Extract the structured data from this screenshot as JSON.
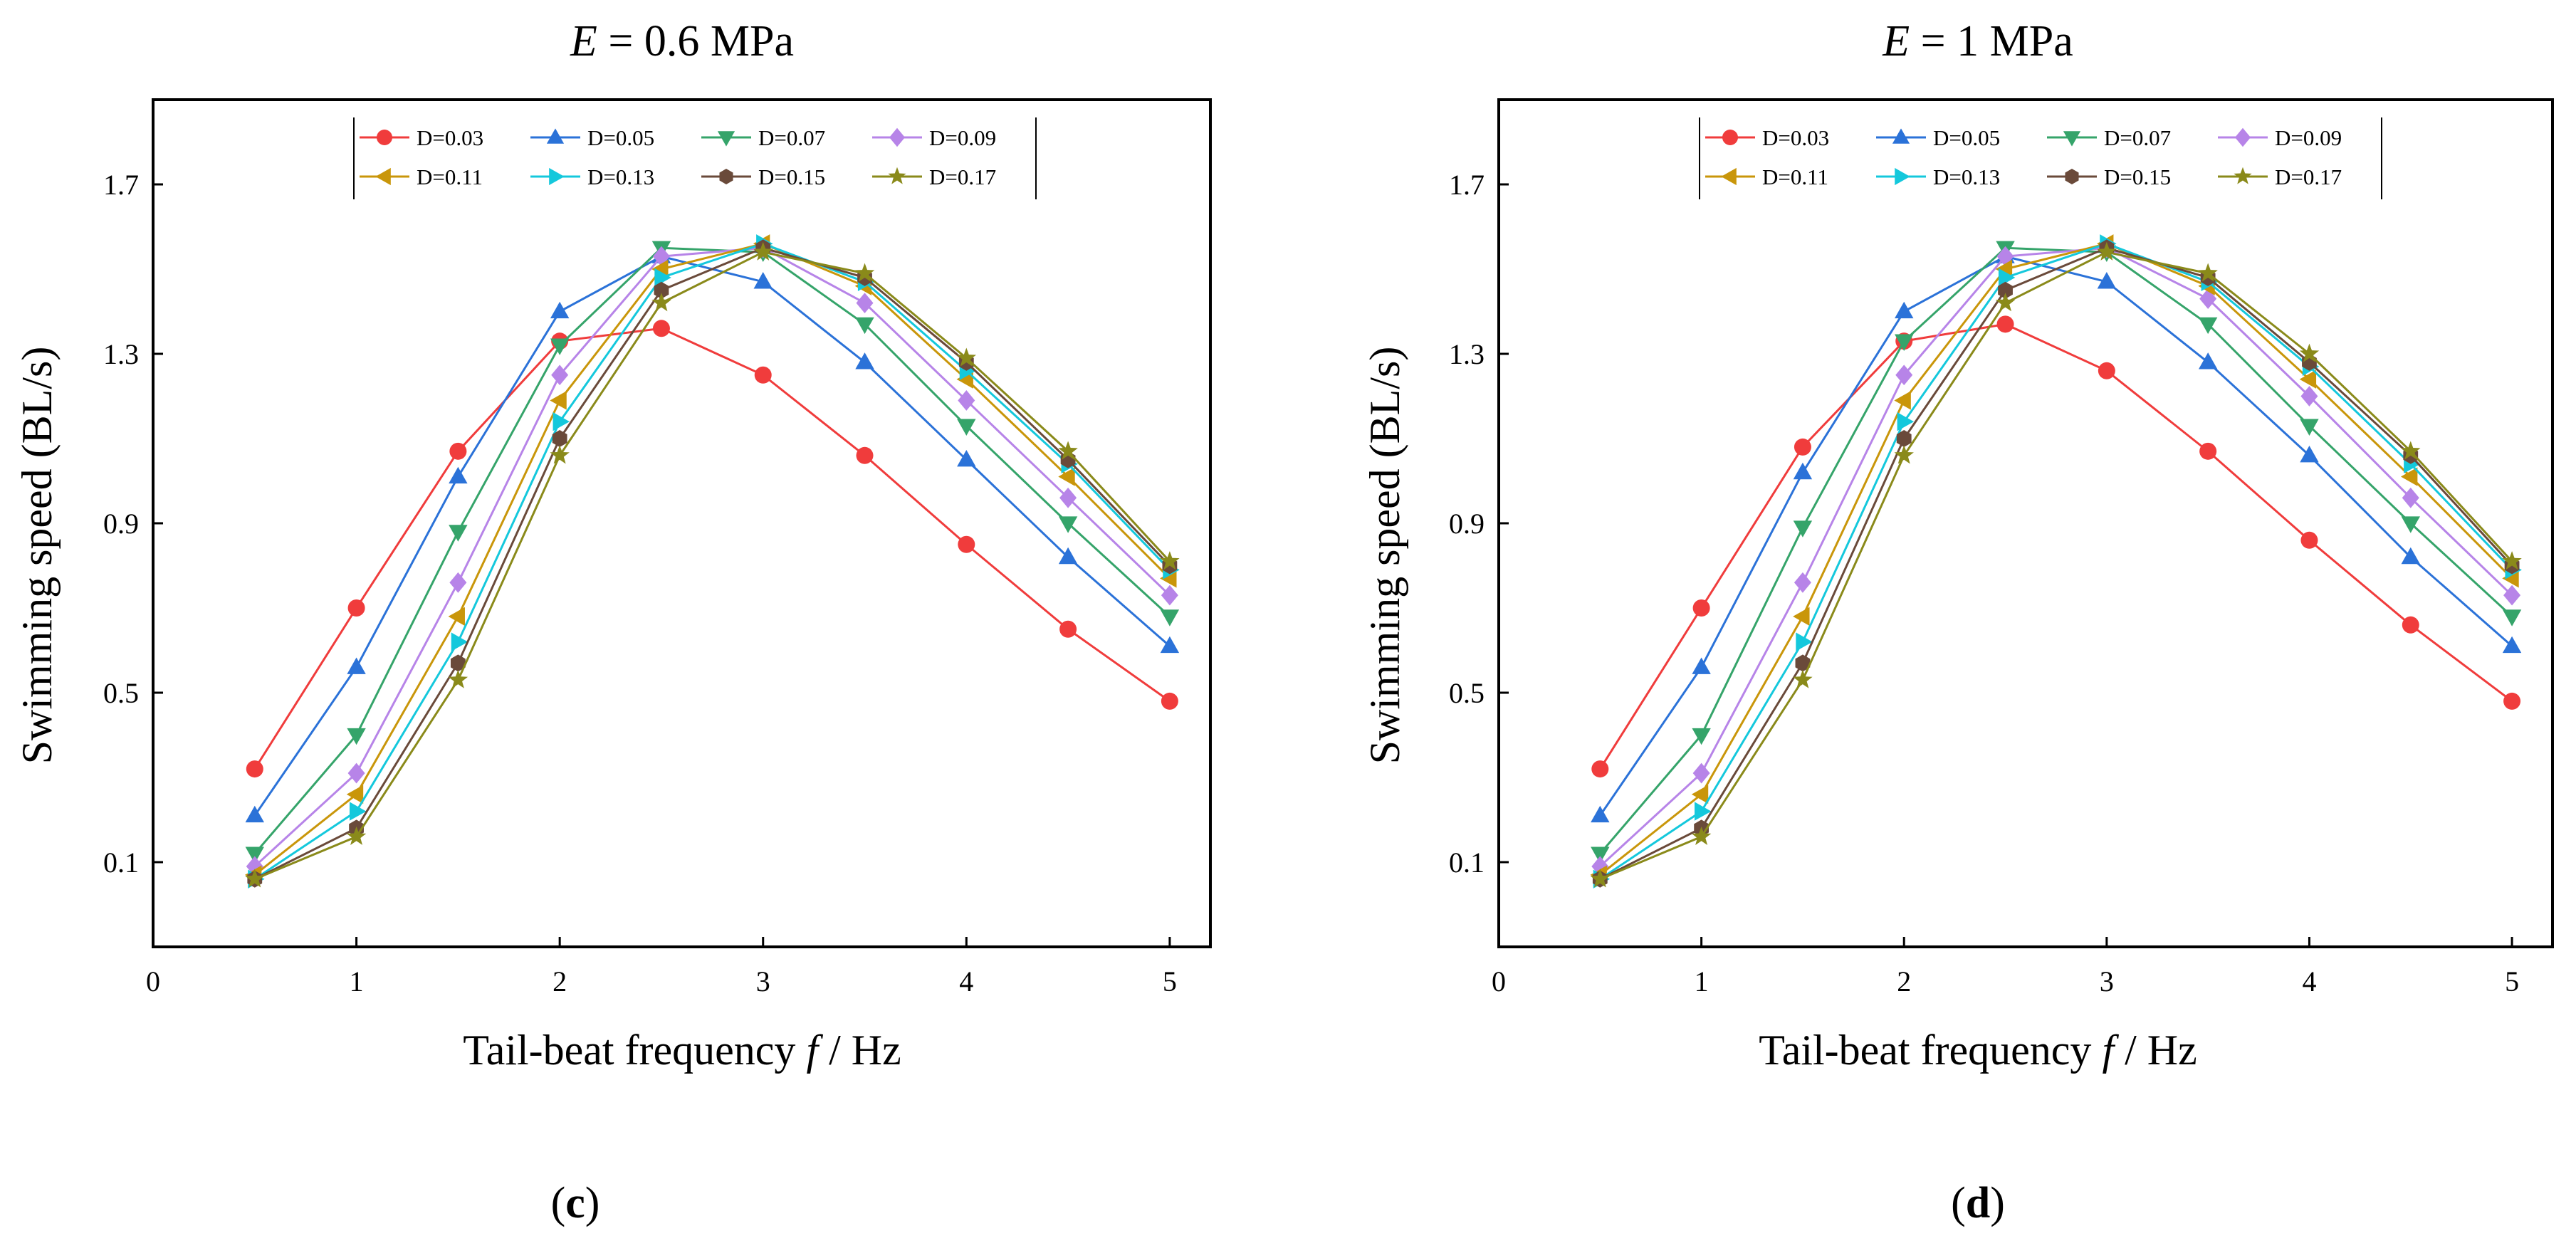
{
  "figure": {
    "caption_c": {
      "open": "(",
      "letter": "c",
      "close": ")"
    },
    "caption_d": {
      "open": "(",
      "letter": "d",
      "close": ")"
    }
  },
  "chart_data": [
    {
      "type": "line",
      "title_var": "E",
      "title_rest": " = 0.6 MPa",
      "xlabel_main": "Tail-beat frequency ",
      "xlabel_var": "f",
      "xlabel_unit": " / Hz",
      "ylabel": "Swimming speed (BL/s)",
      "xlim": [
        0,
        5.2
      ],
      "ylim": [
        -0.1,
        1.9
      ],
      "xticks": [
        "0",
        "1",
        "2",
        "3",
        "4",
        "5"
      ],
      "yticks": [
        "0.1",
        "0.5",
        "0.9",
        "1.3",
        "1.7"
      ],
      "x": [
        0.5,
        1.0,
        1.5,
        2.0,
        2.5,
        3.0,
        3.5,
        4.0,
        4.5,
        5.0
      ],
      "series": [
        {
          "name": "D=0.03",
          "color": "#f03c3c",
          "marker": "circle",
          "values": [
            0.32,
            0.7,
            1.07,
            1.33,
            1.36,
            1.25,
            1.06,
            0.85,
            0.65,
            0.48
          ]
        },
        {
          "name": "D=0.05",
          "color": "#2b72d8",
          "marker": "triangle-up",
          "values": [
            0.21,
            0.56,
            1.01,
            1.4,
            1.53,
            1.47,
            1.28,
            1.05,
            0.82,
            0.61
          ]
        },
        {
          "name": "D=0.07",
          "color": "#35a46a",
          "marker": "triangle-down",
          "values": [
            0.12,
            0.4,
            0.88,
            1.32,
            1.55,
            1.54,
            1.37,
            1.13,
            0.9,
            0.68
          ]
        },
        {
          "name": "D=0.09",
          "color": "#b784e8",
          "marker": "diamond",
          "values": [
            0.09,
            0.31,
            0.76,
            1.25,
            1.53,
            1.55,
            1.42,
            1.19,
            0.96,
            0.73
          ]
        },
        {
          "name": "D=0.11",
          "color": "#c9960a",
          "marker": "triangle-left",
          "values": [
            0.07,
            0.26,
            0.68,
            1.19,
            1.5,
            1.56,
            1.46,
            1.24,
            1.01,
            0.77
          ]
        },
        {
          "name": "D=0.13",
          "color": "#14c8dc",
          "marker": "triangle-right",
          "values": [
            0.06,
            0.22,
            0.62,
            1.14,
            1.48,
            1.56,
            1.47,
            1.26,
            1.04,
            0.79
          ]
        },
        {
          "name": "D=0.15",
          "color": "#6a4a3a",
          "marker": "hexagon",
          "values": [
            0.06,
            0.18,
            0.57,
            1.1,
            1.45,
            1.55,
            1.48,
            1.28,
            1.05,
            0.8
          ]
        },
        {
          "name": "D=0.17",
          "color": "#8a8a1a",
          "marker": "star",
          "values": [
            0.06,
            0.16,
            0.53,
            1.06,
            1.42,
            1.54,
            1.49,
            1.29,
            1.07,
            0.81
          ]
        }
      ]
    },
    {
      "type": "line",
      "title_var": "E",
      "title_rest": " = 1 MPa",
      "xlabel_main": "Tail-beat frequency ",
      "xlabel_var": "f",
      "xlabel_unit": " / Hz",
      "ylabel": "Swimming speed (BL/s)",
      "xlim": [
        0,
        5.2
      ],
      "ylim": [
        -0.1,
        1.9
      ],
      "xticks": [
        "0",
        "1",
        "2",
        "3",
        "4",
        "5"
      ],
      "yticks": [
        "0.1",
        "0.5",
        "0.9",
        "1.3",
        "1.7"
      ],
      "x": [
        0.5,
        1.0,
        1.5,
        2.0,
        2.5,
        3.0,
        3.5,
        4.0,
        4.5,
        5.0
      ],
      "series": [
        {
          "name": "D=0.03",
          "color": "#f03c3c",
          "marker": "circle",
          "values": [
            0.32,
            0.7,
            1.08,
            1.33,
            1.37,
            1.26,
            1.07,
            0.86,
            0.66,
            0.48
          ]
        },
        {
          "name": "D=0.05",
          "color": "#2b72d8",
          "marker": "triangle-up",
          "values": [
            0.21,
            0.56,
            1.02,
            1.4,
            1.53,
            1.47,
            1.28,
            1.06,
            0.82,
            0.61
          ]
        },
        {
          "name": "D=0.07",
          "color": "#35a46a",
          "marker": "triangle-down",
          "values": [
            0.12,
            0.4,
            0.89,
            1.33,
            1.55,
            1.54,
            1.37,
            1.13,
            0.9,
            0.68
          ]
        },
        {
          "name": "D=0.09",
          "color": "#b784e8",
          "marker": "diamond",
          "values": [
            0.09,
            0.31,
            0.76,
            1.25,
            1.53,
            1.55,
            1.43,
            1.2,
            0.96,
            0.73
          ]
        },
        {
          "name": "D=0.11",
          "color": "#c9960a",
          "marker": "triangle-left",
          "values": [
            0.07,
            0.26,
            0.68,
            1.19,
            1.5,
            1.56,
            1.46,
            1.24,
            1.01,
            0.77
          ]
        },
        {
          "name": "D=0.13",
          "color": "#14c8dc",
          "marker": "triangle-right",
          "values": [
            0.06,
            0.22,
            0.62,
            1.14,
            1.48,
            1.56,
            1.47,
            1.27,
            1.04,
            0.79
          ]
        },
        {
          "name": "D=0.15",
          "color": "#6a4a3a",
          "marker": "hexagon",
          "values": [
            0.06,
            0.18,
            0.57,
            1.1,
            1.45,
            1.55,
            1.48,
            1.28,
            1.06,
            0.8
          ]
        },
        {
          "name": "D=0.17",
          "color": "#8a8a1a",
          "marker": "star",
          "values": [
            0.06,
            0.16,
            0.53,
            1.06,
            1.42,
            1.54,
            1.49,
            1.3,
            1.07,
            0.81
          ]
        }
      ]
    }
  ]
}
